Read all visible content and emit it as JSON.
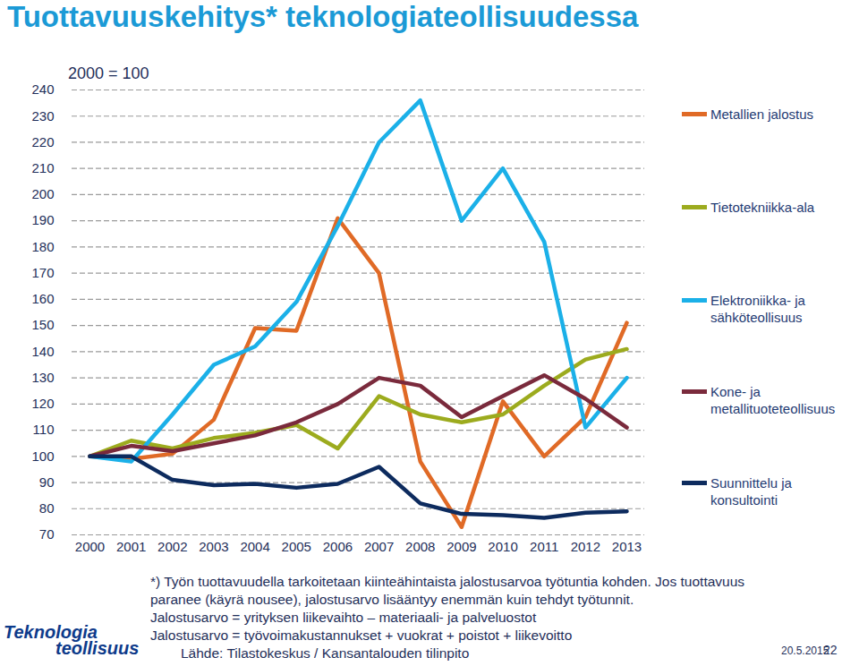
{
  "chart_data": {
    "type": "line",
    "title": "Tuottavuuskehitys* teknologiateollisuudessa",
    "subtitle": "2000 = 100",
    "x": [
      2000,
      2001,
      2002,
      2003,
      2004,
      2005,
      2006,
      2007,
      2008,
      2009,
      2010,
      2011,
      2012,
      2013
    ],
    "xlim": [
      2000,
      2013
    ],
    "xticks": [
      2000,
      2001,
      2002,
      2003,
      2004,
      2005,
      2006,
      2007,
      2008,
      2009,
      2010,
      2011,
      2012,
      2013
    ],
    "ylim": [
      70,
      240
    ],
    "yticks": [
      70,
      80,
      90,
      100,
      110,
      120,
      130,
      140,
      150,
      160,
      170,
      180,
      190,
      200,
      210,
      220,
      230,
      240
    ],
    "grid": true,
    "legend": "right",
    "series": [
      {
        "name": "Metallien jalostus",
        "color": "#e06a26",
        "values": [
          100,
          99,
          101,
          114,
          149,
          148,
          191,
          170,
          98,
          73,
          121,
          100,
          115,
          151
        ]
      },
      {
        "name": "Tietotekniikka-ala",
        "color": "#9cab1e",
        "values": [
          100,
          106,
          103,
          107,
          109,
          112,
          103,
          123,
          116,
          113,
          116,
          127,
          137,
          141
        ]
      },
      {
        "name": "Elektroniikka- ja sähköteollisuus",
        "color": "#1bb0e8",
        "values": [
          100,
          98,
          116,
          135,
          142,
          159,
          188,
          220,
          236,
          190,
          210,
          182,
          111,
          130
        ]
      },
      {
        "name": "Kone- ja metallituoteteollisuus",
        "color": "#7a2a3c",
        "values": [
          100,
          104,
          102,
          105,
          108,
          113,
          120,
          130,
          127,
          115,
          123,
          131,
          122,
          111
        ]
      },
      {
        "name": "Suunnittelu ja konsultointi",
        "color": "#0d2b5e",
        "values": [
          100,
          100,
          91,
          89,
          89.5,
          88,
          89.5,
          96,
          82,
          78,
          77.5,
          76.5,
          78.5,
          79
        ]
      }
    ]
  },
  "footer": {
    "notes": [
      "*) Työn tuottavuudella tarkoitetaan kiinteähintaista jalostusarvoa työtuntia kohden. Jos tuottavuus",
      "paranee (käyrä nousee), jalostusarvo lisääntyy enemmän kuin tehdyt työtunnit.",
      "Jalostusarvo = yrityksen liikevaihto – materiaali- ja palveluostot",
      "Jalostusarvo = työvoimakustannukset + vuokrat + poistot + liikevoitto"
    ],
    "source": "Lähde: Tilastokeskus / Kansantalouden tilinpito",
    "logo": [
      "Teknologia",
      "teollisuus"
    ],
    "date": "20.5.2015",
    "page": "22"
  }
}
